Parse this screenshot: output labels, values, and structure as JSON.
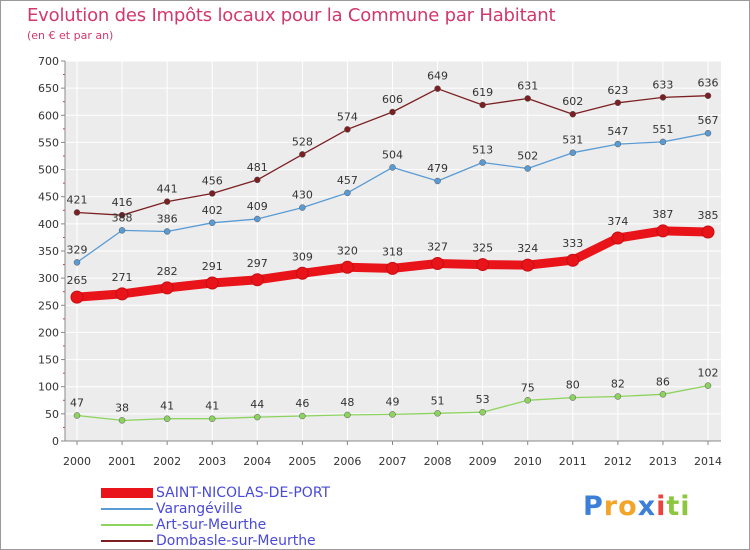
{
  "title": "Evolution des Impôts locaux pour la Commune par Habitant",
  "subtitle": "(en € et par an)",
  "chart_data": {
    "type": "line",
    "title": "Evolution des Impôts locaux pour la Commune par Habitant",
    "ylabel": "(en € et par an)",
    "xlabel": "",
    "x": [
      "2000",
      "2001",
      "2002",
      "2003",
      "2004",
      "2005",
      "2006",
      "2007",
      "2008",
      "2009",
      "2010",
      "2011",
      "2012",
      "2013",
      "2014"
    ],
    "ylim": [
      0,
      700
    ],
    "yticks": [
      0,
      50,
      100,
      150,
      200,
      250,
      300,
      350,
      400,
      450,
      500,
      550,
      600,
      650,
      700
    ],
    "grid": true,
    "legend_position": "bottom-left",
    "series": [
      {
        "name": "SAINT-NICOLAS-DE-PORT",
        "color": "#e8141a",
        "values": [
          265,
          271,
          282,
          291,
          297,
          309,
          320,
          318,
          327,
          325,
          324,
          333,
          374,
          387,
          385
        ]
      },
      {
        "name": "Varangéville",
        "color": "#5a9bd4",
        "values": [
          329,
          388,
          386,
          402,
          409,
          430,
          457,
          504,
          479,
          513,
          502,
          531,
          547,
          551,
          567
        ]
      },
      {
        "name": "Art-sur-Meurthe",
        "color": "#8dd35f",
        "values": [
          47,
          38,
          41,
          41,
          44,
          46,
          48,
          49,
          51,
          53,
          75,
          80,
          82,
          86,
          102
        ]
      },
      {
        "name": "Dombasle-sur-Meurthe",
        "color": "#7b1f22",
        "values": [
          421,
          416,
          441,
          456,
          481,
          528,
          574,
          606,
          649,
          619,
          631,
          602,
          623,
          633,
          636
        ]
      }
    ]
  },
  "logo": {
    "letters": [
      "P",
      "r",
      "o",
      "x",
      "i",
      "t",
      "i"
    ],
    "colors": [
      "#3b7fd8",
      "#f3a52a",
      "#f3a52a",
      "#3b7fd8",
      "#e8453c",
      "#8dc63f",
      "#8dc63f"
    ]
  }
}
